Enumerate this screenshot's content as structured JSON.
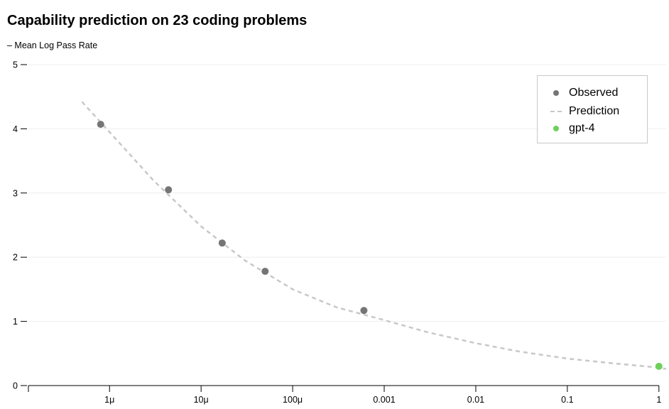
{
  "chart_data": {
    "type": "scatter",
    "title": "Capability prediction on 23 coding problems",
    "ylabel": "– Mean Log Pass Rate",
    "xlabel": "",
    "x_scale": "log",
    "xlim": [
      1.3e-07,
      1.2
    ],
    "ylim": [
      0,
      5
    ],
    "y_ticks": [
      0,
      1,
      2,
      3,
      4,
      5
    ],
    "x_ticks": [
      {
        "value": 1e-06,
        "label": "1μ"
      },
      {
        "value": 1e-05,
        "label": "10μ"
      },
      {
        "value": 0.0001,
        "label": "100μ"
      },
      {
        "value": 0.001,
        "label": "0.001"
      },
      {
        "value": 0.01,
        "label": "0.01"
      },
      {
        "value": 0.1,
        "label": "0.1"
      },
      {
        "value": 1,
        "label": "1"
      }
    ],
    "grid": true,
    "legend_position": "top-right",
    "series": [
      {
        "name": "Observed",
        "type": "scatter",
        "color": "#757575",
        "points": [
          {
            "x": 8e-07,
            "y": 4.07
          },
          {
            "x": 4.4e-06,
            "y": 3.05
          },
          {
            "x": 1.7e-05,
            "y": 2.22
          },
          {
            "x": 5e-05,
            "y": 1.78
          },
          {
            "x": 0.0006,
            "y": 1.17
          }
        ]
      },
      {
        "name": "Prediction",
        "type": "line",
        "style": "dashed",
        "color": "#c8c8c8",
        "points": [
          {
            "x": 5e-07,
            "y": 4.42
          },
          {
            "x": 1e-06,
            "y": 3.95
          },
          {
            "x": 3e-06,
            "y": 3.2
          },
          {
            "x": 1e-05,
            "y": 2.48
          },
          {
            "x": 3e-05,
            "y": 1.95
          },
          {
            "x": 0.0001,
            "y": 1.5
          },
          {
            "x": 0.0003,
            "y": 1.22
          },
          {
            "x": 0.001,
            "y": 1.02
          },
          {
            "x": 0.003,
            "y": 0.83
          },
          {
            "x": 0.01,
            "y": 0.66
          },
          {
            "x": 0.03,
            "y": 0.53
          },
          {
            "x": 0.1,
            "y": 0.42
          },
          {
            "x": 0.3,
            "y": 0.35
          },
          {
            "x": 1,
            "y": 0.28
          },
          {
            "x": 1.2,
            "y": 0.26
          }
        ]
      },
      {
        "name": "gpt-4",
        "type": "scatter",
        "color": "#6fcf5c",
        "points": [
          {
            "x": 1.0,
            "y": 0.3
          }
        ]
      }
    ]
  },
  "colors": {
    "grid": "#eeeeee",
    "axis": "#000000",
    "legend_border": "#c8c8c8"
  }
}
